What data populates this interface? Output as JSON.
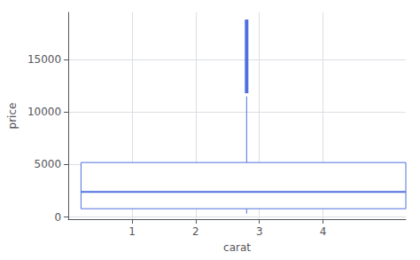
{
  "chart_data": {
    "type": "box",
    "xlabel": "carat",
    "ylabel": "price",
    "boxes": [
      {
        "x": 2.8,
        "box_left": 0.2,
        "box_right": 5.3,
        "q1": 800,
        "median": 2401,
        "q3": 5200,
        "whisker_low": 326,
        "whisker_high": 11500,
        "outlier_band_low": 11800,
        "outlier_band_high": 18820
      }
    ],
    "xlim": [
      0.0,
      5.3
    ],
    "ylim": [
      -200,
      19500
    ],
    "xticks": [
      1,
      2,
      3,
      4
    ],
    "yticks": [
      0,
      5000,
      10000,
      15000
    ],
    "grid": true
  }
}
